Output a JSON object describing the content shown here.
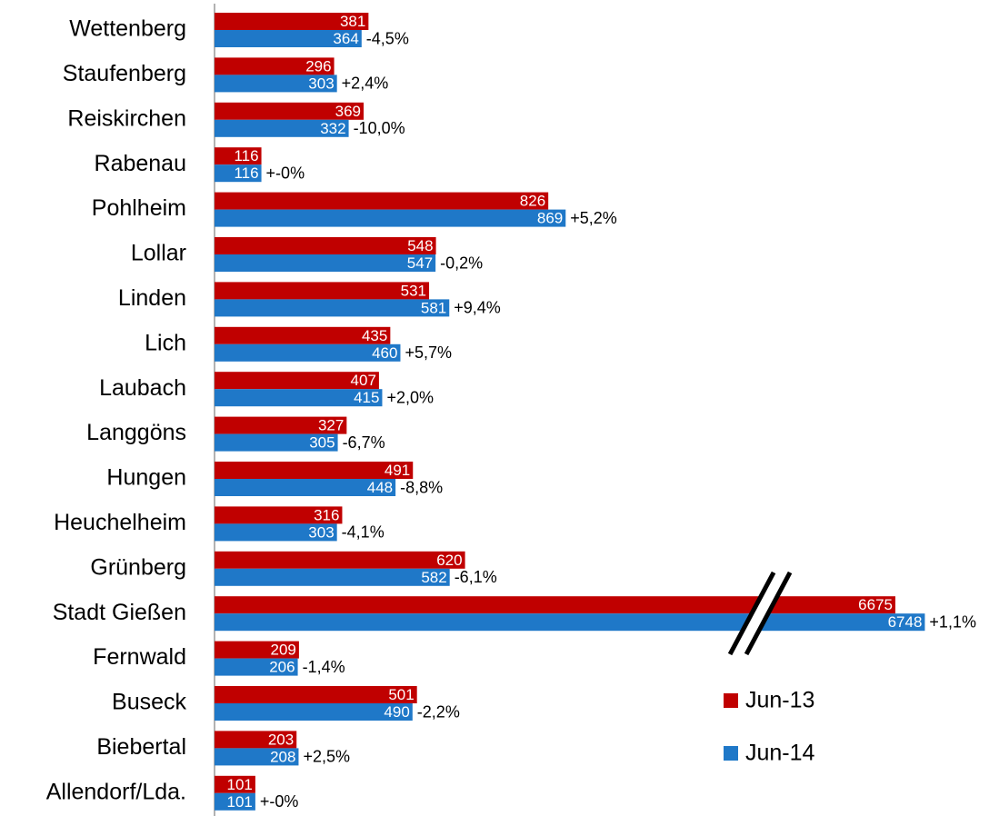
{
  "chart_data": {
    "type": "bar",
    "orientation": "horizontal",
    "categories": [
      "Wettenberg",
      "Staufenberg",
      "Reiskirchen",
      "Rabenau",
      "Pohlheim",
      "Lollar",
      "Linden",
      "Lich",
      "Laubach",
      "Langgöns",
      "Hungen",
      "Heuchelheim",
      "Grünberg",
      "Stadt Gießen",
      "Fernwald",
      "Buseck",
      "Biebertal",
      "Allendorf/Lda."
    ],
    "series": [
      {
        "name": "Jun-13",
        "color": "#c00000",
        "values": [
          381,
          296,
          369,
          116,
          826,
          548,
          531,
          435,
          407,
          327,
          491,
          316,
          620,
          6675,
          209,
          501,
          203,
          101
        ]
      },
      {
        "name": "Jun-14",
        "color": "#1f78c8",
        "values": [
          364,
          303,
          332,
          116,
          869,
          547,
          581,
          460,
          415,
          305,
          448,
          303,
          582,
          6748,
          206,
          490,
          208,
          101
        ]
      }
    ],
    "change_labels": [
      "-4,5%",
      "+2,4%",
      "-10,0%",
      "+-0%",
      "+5,2%",
      "-0,2%",
      "+9,4%",
      "+5,7%",
      "+2,0%",
      "-6,7%",
      "-8,8%",
      "-4,1%",
      "-6,1%",
      "+1,1%",
      "-1,4%",
      "-2,2%",
      "+2,5%",
      "+-0%"
    ],
    "xlim": [
      0,
      6900
    ],
    "axis_break": [
      1350,
      6340
    ],
    "legend": "lower right"
  }
}
